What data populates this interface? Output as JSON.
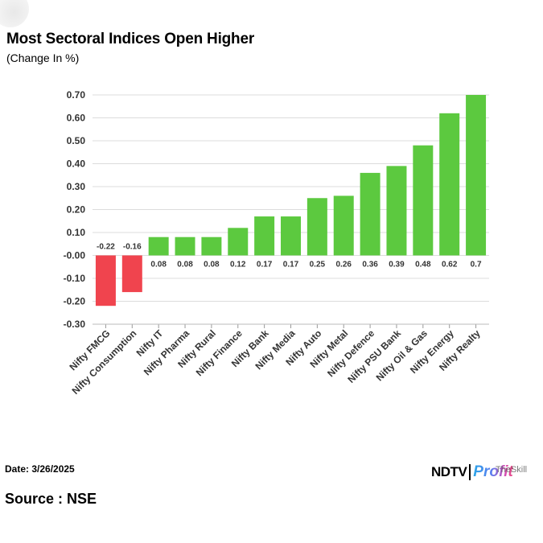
{
  "header": {
    "title": "Most Sectoral Indices Open Higher",
    "subtitle": "(Change In %)"
  },
  "footer": {
    "date": "Date: 3/26/2025",
    "source": "Source : NSE",
    "logo_left": "NDTV",
    "logo_right": "Profit",
    "logo_watermark": "TheSkill"
  },
  "colors": {
    "positive": "#5cc93f",
    "negative": "#f0444e",
    "grid": "#dcdcdc",
    "axis_text": "#333333"
  },
  "chart_data": {
    "type": "bar",
    "title": "Most Sectoral Indices Open Higher",
    "subtitle": "(Change In %)",
    "categories": [
      "Nifty FMCG",
      "Nifty Consumption",
      "Nifty IT",
      "Nifty Pharma",
      "Nifty Rural",
      "Nifty Finance",
      "Nifty Bank",
      "Nifty Media",
      "Nifty Auto",
      "Nifty Metal",
      "Nifty Defence",
      "Nifty PSU Bank",
      "Nifty Oil & Gas",
      "Nifty Energy",
      "Nifty Realty"
    ],
    "values": [
      -0.22,
      -0.16,
      0.08,
      0.08,
      0.08,
      0.12,
      0.17,
      0.17,
      0.25,
      0.26,
      0.36,
      0.39,
      0.48,
      0.62,
      0.7
    ],
    "data_labels": [
      "-0.22",
      "-0.16",
      "0.08",
      "0.08",
      "0.08",
      "0.12",
      "0.17",
      "0.17",
      "0.25",
      "0.26",
      "0.36",
      "0.39",
      "0.48",
      "0.62",
      "0.7"
    ],
    "ylim": [
      -0.3,
      0.7
    ],
    "yticks": [
      "0.70",
      "0.60",
      "0.50",
      "0.40",
      "0.30",
      "0.20",
      "0.10",
      "-0.00",
      "-0.10",
      "-0.20",
      "-0.30"
    ],
    "ytick_values": [
      0.7,
      0.6,
      0.5,
      0.4,
      0.3,
      0.2,
      0.1,
      0,
      -0.1,
      -0.2,
      -0.3
    ],
    "grid": true,
    "legend": "none"
  }
}
